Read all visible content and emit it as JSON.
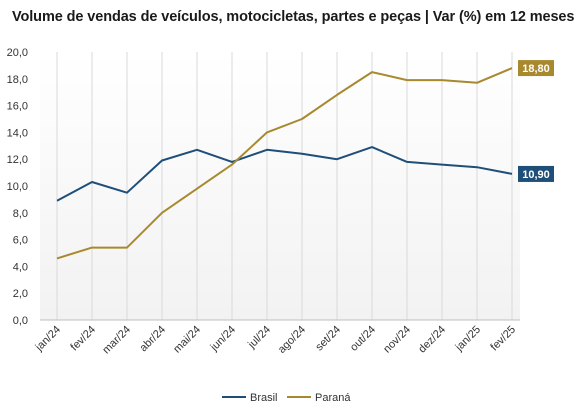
{
  "colors": {
    "brasil": "#1f4e79",
    "parana": "#a8892e",
    "grid": "#d9d9d9",
    "axis": "#bfbfbf"
  },
  "chart_data": {
    "type": "line",
    "title": "Volume de vendas de veículos, motocicletas, partes e peças | Var (%) em 12 meses",
    "categories": [
      "jan/24",
      "fev/24",
      "mar/24",
      "abr/24",
      "mai/24",
      "jun/24",
      "jul/24",
      "ago/24",
      "set/24",
      "out/24",
      "nov/24",
      "dez/24",
      "jan/25",
      "fev/25"
    ],
    "series": [
      {
        "name": "Brasil",
        "values": [
          8.9,
          10.3,
          9.5,
          11.9,
          12.7,
          11.8,
          12.7,
          12.4,
          12.0,
          12.9,
          11.8,
          11.6,
          11.4,
          10.9
        ],
        "end_label": "10,90"
      },
      {
        "name": "Paraná",
        "values": [
          4.6,
          5.4,
          5.4,
          8.0,
          9.8,
          11.6,
          14.0,
          15.0,
          16.8,
          18.5,
          17.9,
          17.9,
          17.7,
          18.8
        ],
        "end_label": "18,80"
      }
    ],
    "ylim": [
      0,
      20
    ],
    "yticks": [
      "0,0",
      "2,0",
      "4,0",
      "6,0",
      "8,0",
      "10,0",
      "12,0",
      "14,0",
      "16,0",
      "18,0",
      "20,0"
    ],
    "grid": "vertical",
    "legend": "bottom-center"
  }
}
